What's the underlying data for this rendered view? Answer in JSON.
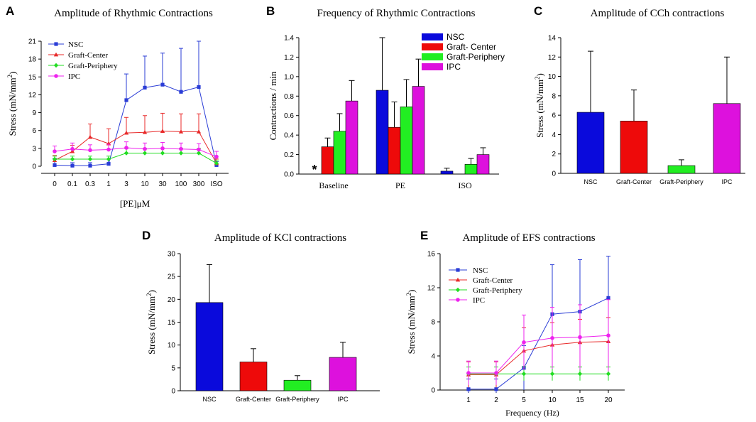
{
  "chart_data": [
    {
      "id": "A",
      "panel_label": "A",
      "type": "line",
      "title": "Amplitude of Rhythmic Contractions",
      "xlabel": "[PE]μM",
      "ylabel": "Stress (mN/mm²)",
      "ylim": [
        0,
        21
      ],
      "yticks": [
        "0",
        "3",
        "6",
        "9",
        "12",
        "15",
        "18",
        "21"
      ],
      "categories": [
        "0",
        "0.1",
        "0.3",
        "1",
        "3",
        "10",
        "30",
        "100",
        "300",
        "ISO"
      ],
      "series": [
        {
          "name": "NSC",
          "color": "#2a3cd6",
          "marker": "square",
          "values": [
            0.2,
            0.1,
            0.1,
            0.4,
            11.1,
            13.2,
            13.7,
            12.5,
            13.3,
            0.2
          ],
          "errors": [
            1.1,
            0.5,
            0.5,
            0.8,
            4.4,
            5.3,
            5.3,
            7.3,
            7.7,
            0.6
          ]
        },
        {
          "name": "Graft-Center",
          "color": "#e82a2a",
          "marker": "triangle",
          "values": [
            1.0,
            2.5,
            4.9,
            3.8,
            5.6,
            5.7,
            5.9,
            5.8,
            5.8,
            0.5
          ],
          "errors": [
            0.8,
            1.0,
            2.2,
            2.5,
            2.6,
            2.8,
            3.0,
            3.0,
            3.0,
            0.7
          ]
        },
        {
          "name": "Graft-Periphery",
          "color": "#22dd22",
          "marker": "diamond",
          "values": [
            1.2,
            1.2,
            1.2,
            1.2,
            2.2,
            2.2,
            2.2,
            2.2,
            2.2,
            0.5
          ],
          "errors": [
            0.5,
            0.5,
            0.5,
            0.5,
            0.8,
            0.8,
            0.8,
            0.8,
            0.8,
            0.4
          ]
        },
        {
          "name": "IPC",
          "color": "#ee22ee",
          "marker": "circle",
          "values": [
            2.5,
            2.9,
            2.7,
            2.8,
            3.1,
            2.9,
            3.0,
            2.9,
            2.8,
            1.6
          ],
          "errors": [
            0.9,
            1.0,
            0.9,
            0.9,
            1.0,
            1.0,
            1.0,
            1.0,
            1.0,
            0.9
          ]
        }
      ]
    },
    {
      "id": "B",
      "panel_label": "B",
      "type": "bar",
      "title": "Frequency of Rhythmic Contractions",
      "ylabel": "Contractions / min",
      "ylim": [
        0,
        1.4
      ],
      "yticks": [
        "0.0",
        "0.2",
        "0.4",
        "0.6",
        "0.8",
        "1.0",
        "1.2",
        "1.4"
      ],
      "categories": [
        "Baseline",
        "PE",
        "ISO"
      ],
      "annotation": "*",
      "series": [
        {
          "name": "NSC",
          "color": "#0a0adc",
          "values": [
            0,
            0.86,
            0.03
          ],
          "errors": [
            0,
            0.54,
            0.03
          ]
        },
        {
          "name": "Graft- Center",
          "color": "#ee0a0a",
          "values": [
            0.28,
            0.48,
            0
          ],
          "errors": [
            0.09,
            0.26,
            0
          ]
        },
        {
          "name": "Graft-Periphery",
          "color": "#22ee22",
          "values": [
            0.44,
            0.69,
            0.1
          ],
          "errors": [
            0.18,
            0.28,
            0.06
          ]
        },
        {
          "name": "IPC",
          "color": "#dd11dd",
          "values": [
            0.75,
            0.9,
            0.2
          ],
          "errors": [
            0.21,
            0.28,
            0.07
          ]
        }
      ]
    },
    {
      "id": "C",
      "panel_label": "C",
      "type": "bar",
      "title": "Amplitude of CCh contractions",
      "ylabel": "Stress (mN/mm²)",
      "ylim": [
        0,
        14
      ],
      "yticks": [
        "0",
        "2",
        "4",
        "6",
        "8",
        "10",
        "12",
        "14"
      ],
      "categories": [
        "NSC",
        "Graft-Center",
        "Graft-Periphery",
        "IPC"
      ],
      "colors": [
        "#0a0adc",
        "#ee0a0a",
        "#22ee22",
        "#dd11dd"
      ],
      "values": [
        6.3,
        5.4,
        0.8,
        7.2
      ],
      "errors": [
        6.3,
        3.2,
        0.6,
        4.8
      ]
    },
    {
      "id": "D",
      "panel_label": "D",
      "type": "bar",
      "title": "Amplitude of KCl contractions",
      "ylabel": "Stress (mN/mm²)",
      "ylim": [
        0,
        30
      ],
      "yticks": [
        "0",
        "5",
        "10",
        "15",
        "20",
        "25",
        "30"
      ],
      "categories": [
        "NSC",
        "Graft-Center",
        "Graft-Periphery",
        "IPC"
      ],
      "colors": [
        "#0a0adc",
        "#ee0a0a",
        "#22ee22",
        "#dd11dd"
      ],
      "values": [
        19.3,
        6.3,
        2.3,
        7.3
      ],
      "errors": [
        8.3,
        2.9,
        1.0,
        3.3
      ]
    },
    {
      "id": "E",
      "panel_label": "E",
      "type": "line",
      "title": "Amplitude of EFS contractions",
      "xlabel": "Frequency (Hz)",
      "ylabel": "Stress (mN/mm²)",
      "ylim": [
        0,
        16
      ],
      "yticks": [
        "0",
        "4",
        "8",
        "12",
        "16"
      ],
      "categories": [
        "1",
        "2",
        "5",
        "10",
        "15",
        "20"
      ],
      "series": [
        {
          "name": "NSC",
          "color": "#2a3cd6",
          "marker": "square",
          "values": [
            0.1,
            0.1,
            2.6,
            8.9,
            9.2,
            10.8
          ],
          "errors": [
            1.2,
            1.2,
            2.6,
            5.8,
            6.1,
            4.9
          ]
        },
        {
          "name": "Graft-Center",
          "color": "#e82a2a",
          "marker": "triangle",
          "values": [
            1.8,
            1.8,
            4.6,
            5.3,
            5.6,
            5.7
          ],
          "errors": [
            1.5,
            1.5,
            2.7,
            2.6,
            2.7,
            2.8
          ]
        },
        {
          "name": "Graft-Periphery",
          "color": "#22dd22",
          "marker": "diamond",
          "values": [
            1.9,
            1.9,
            1.9,
            1.9,
            1.9,
            1.9
          ],
          "errors": [
            0.8,
            0.8,
            0.8,
            0.8,
            0.8,
            0.8
          ]
        },
        {
          "name": "IPC",
          "color": "#ee22ee",
          "marker": "circle",
          "values": [
            2.0,
            2.0,
            5.6,
            6.1,
            6.2,
            6.4
          ],
          "errors": [
            1.4,
            1.4,
            3.2,
            3.6,
            3.8,
            4.2
          ]
        }
      ]
    }
  ]
}
